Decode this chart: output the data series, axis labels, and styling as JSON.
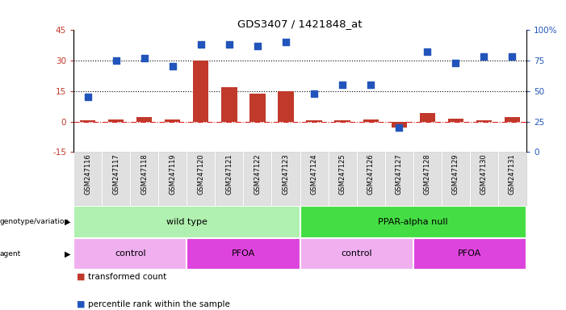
{
  "title": "GDS3407 / 1421848_at",
  "samples": [
    "GSM247116",
    "GSM247117",
    "GSM247118",
    "GSM247119",
    "GSM247120",
    "GSM247121",
    "GSM247122",
    "GSM247123",
    "GSM247124",
    "GSM247125",
    "GSM247126",
    "GSM247127",
    "GSM247128",
    "GSM247129",
    "GSM247130",
    "GSM247131"
  ],
  "transformed_count": [
    0.5,
    1.0,
    2.0,
    1.0,
    30.0,
    17.0,
    13.5,
    15.0,
    0.5,
    0.5,
    1.0,
    -3.0,
    4.0,
    1.5,
    0.5,
    2.0
  ],
  "percentile_rank": [
    45,
    75,
    77,
    70,
    88,
    88,
    87,
    90,
    48,
    55,
    55,
    20,
    82,
    73,
    78,
    78
  ],
  "bar_color": "#c0392b",
  "dot_color": "#2255bb",
  "ylim_left": [
    -15,
    45
  ],
  "ylim_right": [
    0,
    100
  ],
  "yticks_left": [
    -15,
    0,
    15,
    30,
    45
  ],
  "yticks_right": [
    0,
    25,
    50,
    75,
    100
  ],
  "yticklabels_left": [
    "-15",
    "0",
    "15",
    "30",
    "45"
  ],
  "yticklabels_right": [
    "0",
    "25",
    "50",
    "75",
    "100%"
  ],
  "hlines": [
    15,
    30
  ],
  "hline_zero_color": "#dd2222",
  "hline_color": "black",
  "genotype_labels": [
    {
      "text": "wild type",
      "start": 0,
      "end": 7,
      "color": "#b0f0b0"
    },
    {
      "text": "PPAR-alpha null",
      "start": 8,
      "end": 15,
      "color": "#44dd44"
    }
  ],
  "agent_labels": [
    {
      "text": "control",
      "start": 0,
      "end": 3,
      "color": "#f0b0f0"
    },
    {
      "text": "PFOA",
      "start": 4,
      "end": 7,
      "color": "#dd44dd"
    },
    {
      "text": "control",
      "start": 8,
      "end": 11,
      "color": "#f0b0f0"
    },
    {
      "text": "PFOA",
      "start": 12,
      "end": 15,
      "color": "#dd44dd"
    }
  ],
  "legend_red_label": "transformed count",
  "legend_blue_label": "percentile rank within the sample",
  "bar_width": 0.55,
  "dot_size": 28
}
